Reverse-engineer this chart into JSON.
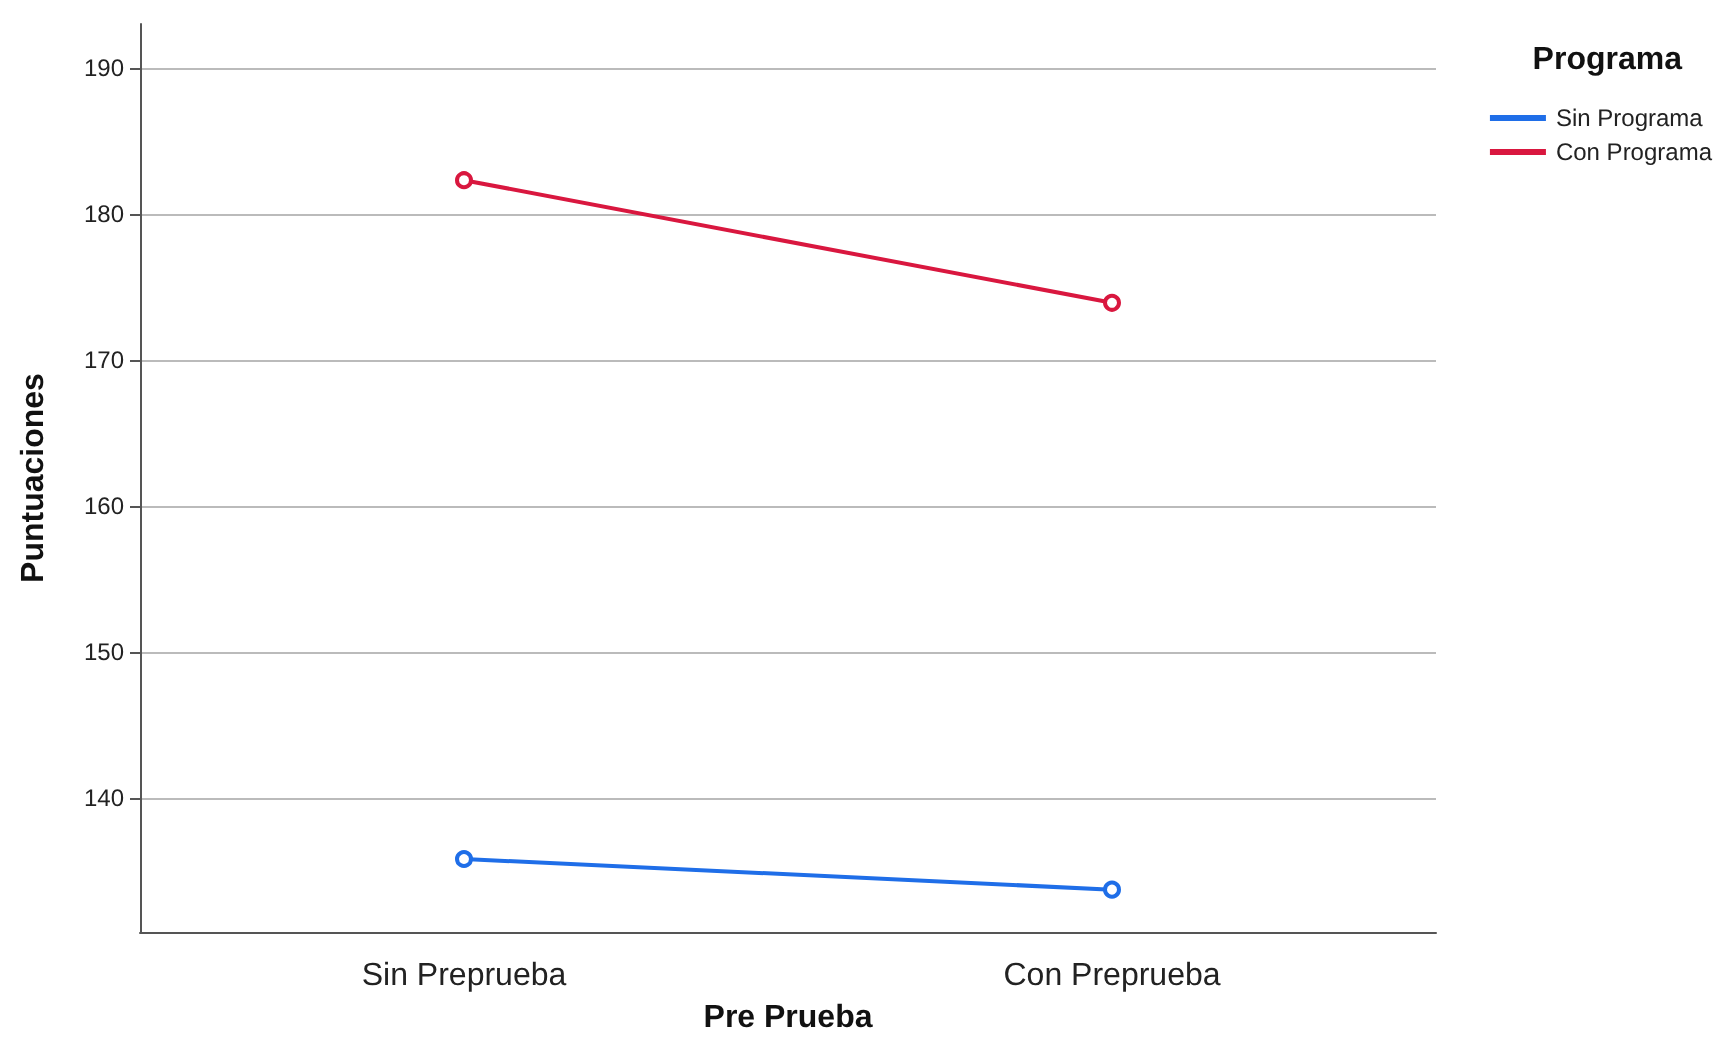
{
  "chart_data": {
    "type": "line",
    "xlabel": "Pre Prueba",
    "ylabel": "Puntuaciones",
    "legend_title": "Programa",
    "categories": [
      "Sin Preprueba",
      "Con Preprueba"
    ],
    "series": [
      {
        "name": "Sin Programa",
        "color": "#1f6ee8",
        "values": [
          135.8,
          133.7
        ]
      },
      {
        "name": "Con Programa",
        "color": "#d9173f",
        "values": [
          182.3,
          173.9
        ]
      }
    ],
    "ylim": [
      130.8,
      193
    ],
    "yticks": [
      140,
      150,
      160,
      170,
      180,
      190
    ],
    "grid": "y",
    "legend": "top right",
    "marker": "circle",
    "line_style": "solid"
  }
}
